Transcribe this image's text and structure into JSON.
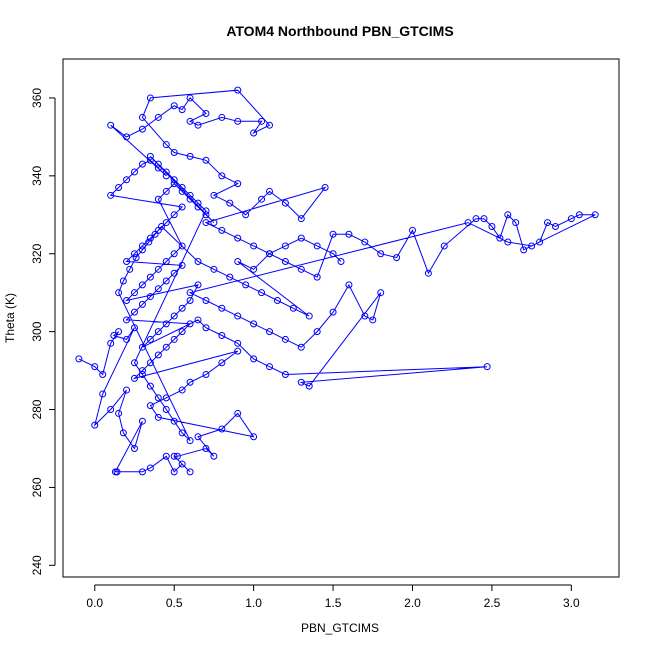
{
  "chart_data": {
    "type": "scatter",
    "connected": true,
    "title": "ATOM4 Northbound PBN_GTCIMS",
    "xlabel": "PBN_GTCIMS",
    "ylabel": "Theta (K)",
    "xlim": [
      -0.2,
      3.3
    ],
    "ylim": [
      237,
      370
    ],
    "x_ticks": [
      0.0,
      0.5,
      1.0,
      1.5,
      2.0,
      2.5,
      3.0
    ],
    "x_tick_labels": [
      "0.0",
      "0.5",
      "1.0",
      "1.5",
      "2.0",
      "2.5",
      "3.0"
    ],
    "y_ticks": [
      240,
      260,
      280,
      300,
      320,
      340,
      360
    ],
    "y_tick_labels": [
      "240",
      "260",
      "280",
      "300",
      "320",
      "340",
      "360"
    ],
    "grid": false,
    "legend": "none",
    "series_color": "#0000ff",
    "marker": "open-circle",
    "points": [
      [
        -0.1,
        293
      ],
      [
        0.0,
        291
      ],
      [
        0.05,
        289
      ],
      [
        0.1,
        297
      ],
      [
        0.15,
        300
      ],
      [
        0.12,
        299
      ],
      [
        0.2,
        298
      ],
      [
        0.25,
        301
      ],
      [
        0.05,
        284
      ],
      [
        0.0,
        276
      ],
      [
        0.1,
        280
      ],
      [
        0.2,
        285
      ],
      [
        0.15,
        279
      ],
      [
        0.18,
        274
      ],
      [
        0.25,
        270
      ],
      [
        0.3,
        277
      ],
      [
        0.13,
        264
      ],
      [
        0.14,
        264
      ],
      [
        0.3,
        264
      ],
      [
        0.35,
        265
      ],
      [
        0.45,
        268
      ],
      [
        0.5,
        264
      ],
      [
        0.55,
        266
      ],
      [
        0.6,
        264
      ],
      [
        0.5,
        268
      ],
      [
        0.52,
        268
      ],
      [
        0.7,
        270
      ],
      [
        0.75,
        268
      ],
      [
        0.65,
        273
      ],
      [
        0.8,
        275
      ],
      [
        0.9,
        279
      ],
      [
        1.0,
        273
      ],
      [
        0.4,
        278
      ],
      [
        0.35,
        281
      ],
      [
        0.45,
        283
      ],
      [
        0.55,
        285
      ],
      [
        0.6,
        287
      ],
      [
        0.7,
        289
      ],
      [
        0.8,
        292
      ],
      [
        0.9,
        295
      ],
      [
        0.25,
        288
      ],
      [
        0.3,
        290
      ],
      [
        0.35,
        292
      ],
      [
        0.4,
        294
      ],
      [
        0.45,
        296
      ],
      [
        0.5,
        298
      ],
      [
        0.55,
        300
      ],
      [
        0.6,
        302
      ],
      [
        0.2,
        303
      ],
      [
        0.25,
        305
      ],
      [
        0.3,
        307
      ],
      [
        0.35,
        309
      ],
      [
        0.4,
        311
      ],
      [
        0.45,
        313
      ],
      [
        0.5,
        315
      ],
      [
        0.55,
        317
      ],
      [
        0.2,
        318
      ],
      [
        0.25,
        320
      ],
      [
        0.3,
        322
      ],
      [
        0.35,
        324
      ],
      [
        0.4,
        326
      ],
      [
        0.45,
        328
      ],
      [
        0.5,
        330
      ],
      [
        0.55,
        332
      ],
      [
        0.1,
        335
      ],
      [
        0.15,
        337
      ],
      [
        0.2,
        339
      ],
      [
        0.25,
        341
      ],
      [
        0.3,
        343
      ],
      [
        0.35,
        344
      ],
      [
        0.4,
        342
      ],
      [
        0.45,
        340
      ],
      [
        0.1,
        353
      ],
      [
        0.2,
        350
      ],
      [
        0.3,
        352
      ],
      [
        0.4,
        355
      ],
      [
        0.5,
        358
      ],
      [
        0.55,
        357
      ],
      [
        0.6,
        360
      ],
      [
        0.7,
        356
      ],
      [
        0.6,
        354
      ],
      [
        0.65,
        353
      ],
      [
        0.8,
        355
      ],
      [
        0.9,
        354
      ],
      [
        1.05,
        354
      ],
      [
        1.0,
        351
      ],
      [
        1.1,
        353
      ],
      [
        0.9,
        362
      ],
      [
        0.35,
        360
      ],
      [
        0.3,
        355
      ],
      [
        0.45,
        348
      ],
      [
        0.5,
        346
      ],
      [
        0.6,
        345
      ],
      [
        0.7,
        344
      ],
      [
        0.8,
        340
      ],
      [
        0.9,
        338
      ],
      [
        0.75,
        335
      ],
      [
        0.85,
        333
      ],
      [
        0.95,
        330
      ],
      [
        1.05,
        334
      ],
      [
        1.1,
        336
      ],
      [
        1.2,
        333
      ],
      [
        1.3,
        329
      ],
      [
        1.45,
        337
      ],
      [
        0.7,
        328
      ],
      [
        0.8,
        326
      ],
      [
        0.9,
        324
      ],
      [
        1.0,
        322
      ],
      [
        1.1,
        320
      ],
      [
        1.2,
        318
      ],
      [
        1.3,
        316
      ],
      [
        1.4,
        314
      ],
      [
        1.5,
        325
      ],
      [
        1.6,
        325
      ],
      [
        1.7,
        323
      ],
      [
        1.8,
        320
      ],
      [
        1.9,
        319
      ],
      [
        2.0,
        326
      ],
      [
        2.1,
        315
      ],
      [
        2.2,
        322
      ],
      [
        2.4,
        329
      ],
      [
        2.45,
        329
      ],
      [
        2.5,
        327
      ],
      [
        2.55,
        324
      ],
      [
        2.6,
        330
      ],
      [
        2.65,
        328
      ],
      [
        2.7,
        321
      ],
      [
        2.8,
        323
      ],
      [
        2.85,
        328
      ],
      [
        2.9,
        327
      ],
      [
        3.0,
        329
      ],
      [
        3.05,
        330
      ],
      [
        3.15,
        330
      ],
      [
        2.75,
        322
      ],
      [
        2.6,
        323
      ],
      [
        2.35,
        328
      ],
      [
        0.6,
        310
      ],
      [
        0.7,
        308
      ],
      [
        0.8,
        306
      ],
      [
        0.9,
        304
      ],
      [
        1.0,
        302
      ],
      [
        1.1,
        300
      ],
      [
        1.2,
        298
      ],
      [
        1.3,
        296
      ],
      [
        1.4,
        300
      ],
      [
        1.5,
        305
      ],
      [
        1.6,
        312
      ],
      [
        1.7,
        304
      ],
      [
        1.75,
        303
      ],
      [
        1.8,
        310
      ],
      [
        1.35,
        286
      ],
      [
        1.3,
        287
      ],
      [
        2.47,
        291
      ],
      [
        1.2,
        289
      ],
      [
        1.1,
        291
      ],
      [
        1.0,
        293
      ],
      [
        0.9,
        297
      ],
      [
        0.8,
        299
      ],
      [
        0.7,
        301
      ],
      [
        0.65,
        303
      ],
      [
        0.3,
        296
      ],
      [
        0.35,
        298
      ],
      [
        0.4,
        300
      ],
      [
        0.45,
        302
      ],
      [
        0.5,
        304
      ],
      [
        0.55,
        306
      ],
      [
        0.6,
        308
      ],
      [
        0.65,
        312
      ],
      [
        0.2,
        308
      ],
      [
        0.25,
        310
      ],
      [
        0.3,
        312
      ],
      [
        0.35,
        314
      ],
      [
        0.4,
        316
      ],
      [
        0.45,
        318
      ],
      [
        0.5,
        320
      ],
      [
        0.55,
        322
      ],
      [
        0.4,
        334
      ],
      [
        0.45,
        336
      ],
      [
        0.5,
        338
      ],
      [
        0.55,
        336
      ],
      [
        0.6,
        334
      ],
      [
        0.65,
        332
      ],
      [
        0.7,
        330
      ],
      [
        0.75,
        328
      ],
      [
        0.35,
        345
      ],
      [
        0.4,
        343
      ],
      [
        0.45,
        341
      ],
      [
        0.5,
        339
      ],
      [
        0.55,
        337
      ],
      [
        0.6,
        335
      ],
      [
        0.65,
        333
      ],
      [
        0.7,
        331
      ],
      [
        0.25,
        292
      ],
      [
        0.3,
        289
      ],
      [
        0.35,
        286
      ],
      [
        0.4,
        283
      ],
      [
        0.45,
        280
      ],
      [
        0.5,
        277
      ],
      [
        0.55,
        274
      ],
      [
        0.6,
        272
      ],
      [
        0.15,
        310
      ],
      [
        0.18,
        313
      ],
      [
        0.22,
        316
      ],
      [
        0.26,
        319
      ],
      [
        0.3,
        321
      ],
      [
        0.34,
        323
      ],
      [
        0.38,
        325
      ],
      [
        0.42,
        327
      ],
      [
        0.65,
        318
      ],
      [
        0.75,
        316
      ],
      [
        0.85,
        314
      ],
      [
        0.95,
        312
      ],
      [
        1.05,
        310
      ],
      [
        1.15,
        308
      ],
      [
        1.25,
        306
      ],
      [
        1.35,
        304
      ],
      [
        0.9,
        318
      ],
      [
        1.0,
        316
      ],
      [
        1.1,
        320
      ],
      [
        1.2,
        322
      ],
      [
        1.3,
        324
      ],
      [
        1.4,
        322
      ],
      [
        1.5,
        320
      ],
      [
        1.55,
        318
      ]
    ]
  }
}
